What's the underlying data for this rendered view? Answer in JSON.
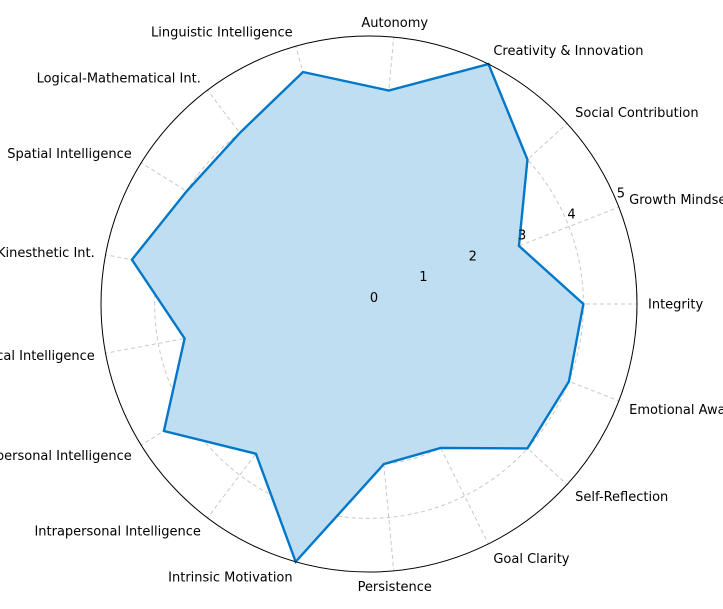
{
  "chart_data": {
    "type": "radar",
    "categories": [
      "Integrity",
      "Growth Mindset",
      "Social Contribution",
      "Creativity & Innovation",
      "Autonomy",
      "Linguistic Intelligence",
      "Logical-Mathematical Int.",
      "Spatial Intelligence",
      "Bodily-Kinesthetic Int.",
      "Musical Intelligence",
      "Interpersonal Intelligence",
      "Intrapersonal Intelligence",
      "Intrinsic Motivation",
      "Persistence",
      "Goal Clarity",
      "Self-Reflection",
      "Emotional Awareness"
    ],
    "series": [
      {
        "values": [
          4,
          3,
          4,
          5,
          4,
          4.5,
          4,
          4,
          4.5,
          3.5,
          4.5,
          3.5,
          5,
          3,
          3,
          4,
          4
        ]
      }
    ],
    "rlim": [
      0,
      5
    ],
    "rticks": [
      "0",
      "1",
      "2",
      "3",
      "4",
      "5"
    ],
    "grid": true,
    "line_color": "#0077c8",
    "fill_color": "#bfdef2"
  }
}
